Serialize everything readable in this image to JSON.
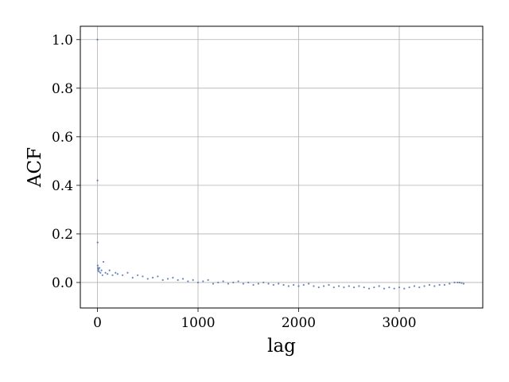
{
  "chart_data": {
    "type": "scatter",
    "xlabel": "lag",
    "ylabel": "ACF",
    "xlim": [
      -170,
      3830
    ],
    "ylim": [
      -0.105,
      1.055
    ],
    "xticks": [
      0,
      1000,
      2000,
      3000
    ],
    "yticks": [
      0.0,
      0.2,
      0.4,
      0.6,
      0.8,
      1.0
    ],
    "xtick_labels": [
      "0",
      "1000",
      "2000",
      "3000"
    ],
    "ytick_labels": [
      "0.0",
      "0.2",
      "0.4",
      "0.6",
      "0.8",
      "1.0"
    ],
    "grid": true,
    "marker_color": "#4c72b0",
    "series": [
      {
        "x": [
          0,
          1,
          2,
          3,
          5,
          8,
          10,
          15,
          20,
          30,
          40,
          50,
          60,
          80,
          100,
          120,
          150,
          180,
          200,
          250,
          300,
          350,
          400,
          450,
          500,
          550,
          600,
          650,
          700,
          750,
          800,
          850,
          900,
          950,
          1000,
          1050,
          1100,
          1150,
          1200,
          1250,
          1300,
          1350,
          1400,
          1450,
          1500,
          1550,
          1600,
          1650,
          1700,
          1750,
          1800,
          1850,
          1900,
          1950,
          2000,
          2050,
          2100,
          2150,
          2200,
          2250,
          2300,
          2350,
          2400,
          2450,
          2500,
          2550,
          2600,
          2650,
          2700,
          2750,
          2800,
          2850,
          2900,
          2950,
          3000,
          3050,
          3100,
          3150,
          3200,
          3250,
          3300,
          3350,
          3400,
          3450,
          3500,
          3550,
          3580,
          3600,
          3620,
          3640
        ],
        "y": [
          1.0,
          0.42,
          0.165,
          0.07,
          0.06,
          0.05,
          0.055,
          0.045,
          0.06,
          0.04,
          0.05,
          0.03,
          0.085,
          0.04,
          0.035,
          0.05,
          0.03,
          0.04,
          0.035,
          0.03,
          0.04,
          0.02,
          0.03,
          0.025,
          0.015,
          0.02,
          0.025,
          0.01,
          0.015,
          0.02,
          0.01,
          0.015,
          0.005,
          0.01,
          0.0,
          0.005,
          0.01,
          -0.005,
          0.0,
          0.005,
          -0.005,
          0.0,
          0.005,
          -0.005,
          0.0,
          -0.01,
          -0.005,
          0.0,
          -0.005,
          -0.01,
          -0.005,
          -0.01,
          -0.015,
          -0.01,
          -0.015,
          -0.01,
          -0.005,
          -0.015,
          -0.02,
          -0.015,
          -0.01,
          -0.02,
          -0.015,
          -0.02,
          -0.015,
          -0.02,
          -0.015,
          -0.02,
          -0.025,
          -0.02,
          -0.015,
          -0.025,
          -0.02,
          -0.025,
          -0.02,
          -0.025,
          -0.02,
          -0.015,
          -0.02,
          -0.015,
          -0.01,
          -0.015,
          -0.01,
          -0.01,
          -0.005,
          0.0,
          0.0,
          0.0,
          -0.002,
          -0.005
        ]
      }
    ]
  }
}
